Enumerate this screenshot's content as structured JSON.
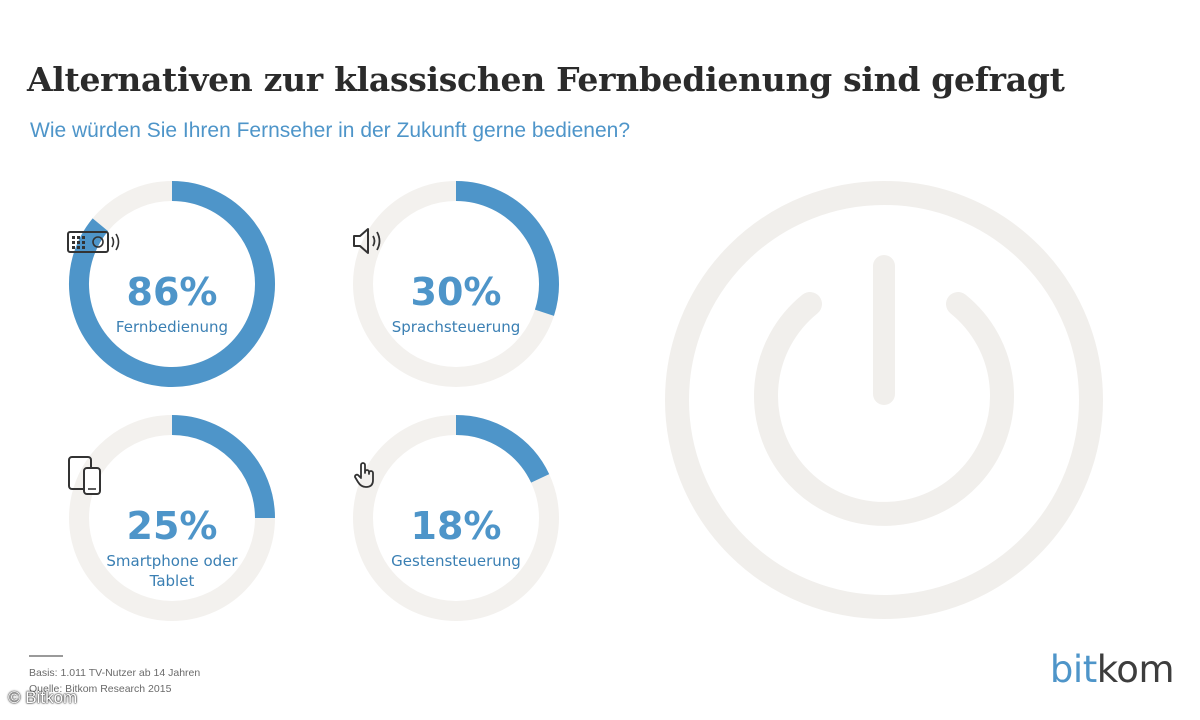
{
  "header": {
    "title": "Alternativen zur klassischen Fernbedienung sind gefragt",
    "subtitle": "Wie würden Sie Ihren Fernseher in der Zukunft gerne bedienen?"
  },
  "chart_data": {
    "type": "donut",
    "title": "Alternativen zur klassischen Fernbedienung sind gefragt",
    "subtitle": "Wie würden Sie Ihren Fernseher in der Zukunft gerne bedienen?",
    "unit": "%",
    "categories": [
      "Fernbedienung",
      "Sprachsteuerung",
      "Smartphone oder Tablet",
      "Gestensteuerung"
    ],
    "values": [
      86,
      30,
      25,
      18
    ],
    "display_values": [
      "86%",
      "30%",
      "25%",
      "18%"
    ],
    "labels": [
      [
        "Fernbedienung"
      ],
      [
        "Sprachsteuerung"
      ],
      [
        "Smartphone oder",
        "Tablet"
      ],
      [
        "Gestensteuerung"
      ]
    ],
    "icons": [
      "remote-control-icon",
      "speaker-icon",
      "devices-icon",
      "gesture-hand-icon"
    ],
    "colors": {
      "fill": "#4e95c9",
      "track": "#f3f1ee"
    }
  },
  "decoration": {
    "power_icon": "power-icon",
    "power_color": "#f1efec"
  },
  "footer": {
    "basis": "Basis: 1.011 TV-Nutzer ab 14 Jahren",
    "source": "Quelle: Bitkom Research 2015",
    "copyright": "© Bitkom"
  },
  "brand": {
    "logo_part1": "bit",
    "logo_part2": "kom"
  }
}
